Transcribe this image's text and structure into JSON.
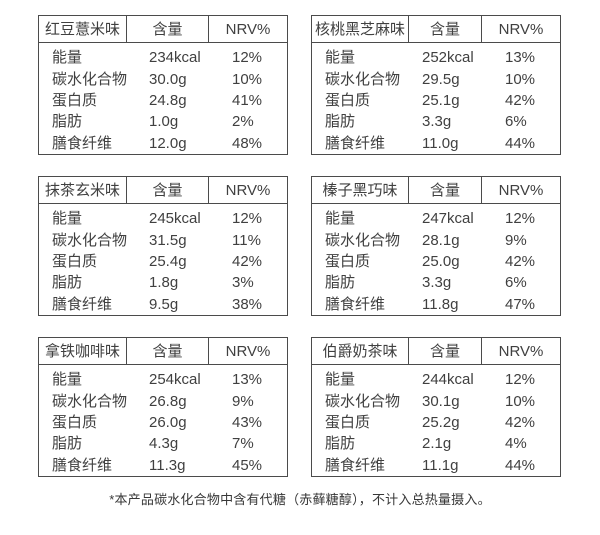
{
  "colors": {
    "background": "#ffffff",
    "border": "#4b4b4b",
    "text": "#404040"
  },
  "table_headers": {
    "content": "含量",
    "nrv": "NRV%"
  },
  "tables": [
    {
      "flavor": "红豆薏米味",
      "rows": [
        {
          "label": "能量",
          "amount": "234kcal",
          "nrv": "12%"
        },
        {
          "label": "碳水化合物",
          "amount": "30.0g",
          "nrv": "10%"
        },
        {
          "label": "蛋白质",
          "amount": "24.8g",
          "nrv": "41%"
        },
        {
          "label": "脂肪",
          "amount": "1.0g",
          "nrv": "2%"
        },
        {
          "label": "膳食纤维",
          "amount": "12.0g",
          "nrv": "48%"
        }
      ]
    },
    {
      "flavor": "核桃黑芝麻味",
      "rows": [
        {
          "label": "能量",
          "amount": "252kcal",
          "nrv": "13%"
        },
        {
          "label": "碳水化合物",
          "amount": "29.5g",
          "nrv": "10%"
        },
        {
          "label": "蛋白质",
          "amount": "25.1g",
          "nrv": "42%"
        },
        {
          "label": "脂肪",
          "amount": "3.3g",
          "nrv": "6%"
        },
        {
          "label": "膳食纤维",
          "amount": "11.0g",
          "nrv": "44%"
        }
      ]
    },
    {
      "flavor": "抹茶玄米味",
      "rows": [
        {
          "label": "能量",
          "amount": "245kcal",
          "nrv": "12%"
        },
        {
          "label": "碳水化合物",
          "amount": "31.5g",
          "nrv": "11%"
        },
        {
          "label": "蛋白质",
          "amount": "25.4g",
          "nrv": "42%"
        },
        {
          "label": "脂肪",
          "amount": "1.8g",
          "nrv": "3%"
        },
        {
          "label": "膳食纤维",
          "amount": "9.5g",
          "nrv": "38%"
        }
      ]
    },
    {
      "flavor": "榛子黑巧味",
      "rows": [
        {
          "label": "能量",
          "amount": "247kcal",
          "nrv": "12%"
        },
        {
          "label": "碳水化合物",
          "amount": "28.1g",
          "nrv": "9%"
        },
        {
          "label": "蛋白质",
          "amount": "25.0g",
          "nrv": "42%"
        },
        {
          "label": "脂肪",
          "amount": "3.3g",
          "nrv": "6%"
        },
        {
          "label": "膳食纤维",
          "amount": "11.8g",
          "nrv": "47%"
        }
      ]
    },
    {
      "flavor": "拿铁咖啡味",
      "rows": [
        {
          "label": "能量",
          "amount": "254kcal",
          "nrv": "13%"
        },
        {
          "label": "碳水化合物",
          "amount": "26.8g",
          "nrv": "9%"
        },
        {
          "label": "蛋白质",
          "amount": "26.0g",
          "nrv": "43%"
        },
        {
          "label": "脂肪",
          "amount": "4.3g",
          "nrv": "7%"
        },
        {
          "label": "膳食纤维",
          "amount": "11.3g",
          "nrv": "45%"
        }
      ]
    },
    {
      "flavor": "伯爵奶茶味",
      "rows": [
        {
          "label": "能量",
          "amount": "244kcal",
          "nrv": "12%"
        },
        {
          "label": "碳水化合物",
          "amount": "30.1g",
          "nrv": "10%"
        },
        {
          "label": "蛋白质",
          "amount": "25.2g",
          "nrv": "42%"
        },
        {
          "label": "脂肪",
          "amount": "2.1g",
          "nrv": "4%"
        },
        {
          "label": "膳食纤维",
          "amount": "11.1g",
          "nrv": "44%"
        }
      ]
    }
  ],
  "footnote": "*本产品碳水化合物中含有代糖（赤藓糖醇），不计入总热量摄入。"
}
